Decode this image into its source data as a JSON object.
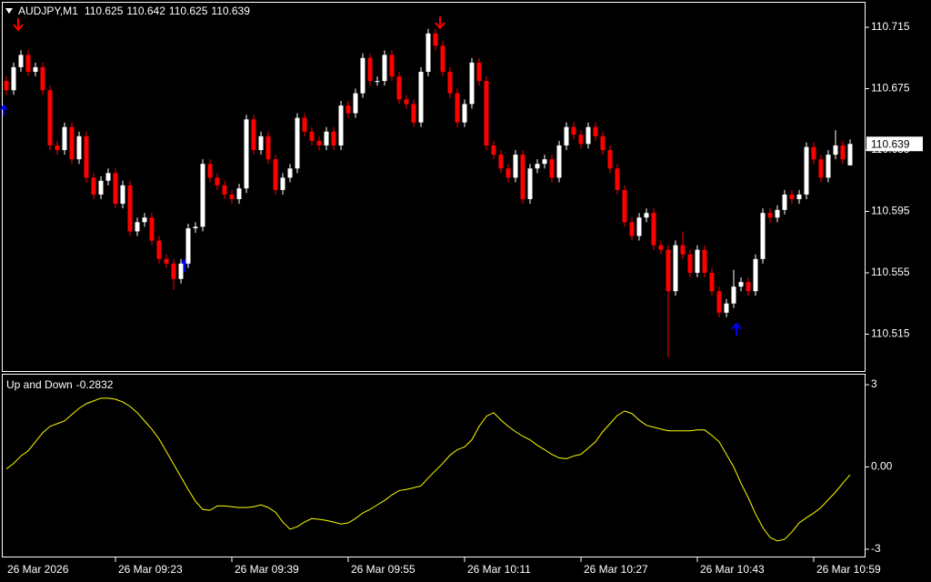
{
  "chart_data": [
    {
      "type": "candlestick",
      "title": "AUDJPY,M1",
      "bull_color": "#ffffff",
      "bear_color": "#ff0000",
      "ylim": [
        110.4898,
        110.7328
      ],
      "yticks": [
        110.715,
        110.675,
        110.635,
        110.595,
        110.555,
        110.515
      ],
      "categories": [
        "26 Mar 2026",
        null,
        null,
        null,
        null,
        null,
        null,
        null,
        null,
        null,
        null,
        null,
        null,
        null,
        null,
        "26 Mar 09:23",
        null,
        null,
        null,
        null,
        null,
        null,
        null,
        null,
        null,
        null,
        null,
        null,
        null,
        null,
        null,
        "26 Mar 09:39",
        null,
        null,
        null,
        null,
        null,
        null,
        null,
        null,
        null,
        null,
        null,
        null,
        null,
        null,
        null,
        "26 Mar 09:55",
        null,
        null,
        null,
        null,
        null,
        null,
        null,
        null,
        null,
        null,
        null,
        null,
        null,
        null,
        null,
        "26 Mar 10:11",
        null,
        null,
        null,
        null,
        null,
        null,
        null,
        null,
        null,
        null,
        null,
        null,
        null,
        null,
        null,
        "26 Mar 10:27",
        null,
        null,
        null,
        null,
        null,
        null,
        null,
        null,
        null,
        null,
        null,
        null,
        null,
        null,
        null,
        "26 Mar 10:43",
        null,
        null,
        null,
        null,
        null,
        null,
        null,
        null,
        null,
        null,
        null,
        null,
        null,
        null,
        null,
        "26 Mar 10:59",
        null,
        null,
        null,
        null,
        null
      ],
      "ohlc": [
        [
          110.68,
          110.683,
          110.671,
          110.674
        ],
        [
          110.674,
          110.692,
          110.671,
          110.689
        ],
        [
          110.689,
          110.7,
          110.686,
          110.697
        ],
        [
          110.697,
          110.7,
          110.683,
          110.686
        ],
        [
          110.686,
          110.692,
          110.683,
          110.689
        ],
        [
          110.689,
          110.692,
          110.671,
          110.674
        ],
        [
          110.674,
          110.677,
          110.635,
          110.638
        ],
        [
          110.638,
          110.641,
          110.632,
          110.635
        ],
        [
          110.635,
          110.653,
          110.632,
          110.65
        ],
        [
          110.65,
          110.653,
          110.626,
          110.629
        ],
        [
          110.629,
          110.647,
          110.626,
          110.644
        ],
        [
          110.644,
          110.647,
          110.614,
          110.617
        ],
        [
          110.617,
          110.62,
          110.603,
          110.606
        ],
        [
          110.606,
          110.618,
          110.603,
          110.615
        ],
        [
          110.615,
          110.623,
          110.612,
          110.62
        ],
        [
          110.62,
          110.623,
          110.597,
          110.6
        ],
        [
          110.6,
          110.615,
          110.597,
          110.612
        ],
        [
          110.612,
          110.615,
          110.579,
          110.582
        ],
        [
          110.582,
          110.591,
          110.579,
          110.588
        ],
        [
          110.588,
          110.594,
          110.585,
          110.591
        ],
        [
          110.591,
          110.594,
          110.573,
          110.576
        ],
        [
          110.576,
          110.579,
          110.561,
          110.564
        ],
        [
          110.564,
          110.567,
          110.558,
          110.561
        ],
        [
          110.561,
          110.564,
          110.544,
          110.551
        ],
        [
          110.551,
          110.564,
          110.548,
          110.561
        ],
        [
          110.561,
          110.587,
          110.558,
          110.584
        ],
        [
          110.584,
          110.588,
          110.581,
          110.585
        ],
        [
          110.585,
          110.629,
          110.582,
          110.626
        ],
        [
          110.626,
          110.629,
          110.614,
          110.617
        ],
        [
          110.617,
          110.62,
          110.609,
          110.612
        ],
        [
          110.612,
          110.615,
          110.603,
          110.606
        ],
        [
          110.606,
          110.609,
          110.6,
          110.603
        ],
        [
          110.603,
          110.613,
          110.6,
          110.61
        ],
        [
          110.61,
          110.658,
          110.607,
          110.655
        ],
        [
          110.655,
          110.658,
          110.632,
          110.635
        ],
        [
          110.635,
          110.647,
          110.632,
          110.644
        ],
        [
          110.644,
          110.647,
          110.626,
          110.629
        ],
        [
          110.629,
          110.632,
          110.606,
          110.609
        ],
        [
          110.609,
          110.62,
          110.606,
          110.617
        ],
        [
          110.617,
          110.626,
          110.614,
          110.623
        ],
        [
          110.623,
          110.659,
          110.62,
          110.656
        ],
        [
          110.656,
          110.659,
          110.644,
          110.647
        ],
        [
          110.647,
          110.65,
          110.638,
          110.641
        ],
        [
          110.641,
          110.644,
          110.635,
          110.638
        ],
        [
          110.638,
          110.65,
          110.635,
          110.647
        ],
        [
          110.647,
          110.65,
          110.635,
          110.638
        ],
        [
          110.638,
          110.667,
          110.635,
          110.664
        ],
        [
          110.664,
          110.667,
          110.656,
          110.659
        ],
        [
          110.659,
          110.675,
          110.656,
          110.672
        ],
        [
          110.672,
          110.698,
          110.669,
          110.695
        ],
        [
          110.695,
          110.698,
          110.677,
          110.68
        ],
        [
          110.68,
          110.683,
          110.677,
          110.68
        ],
        [
          110.68,
          110.7,
          110.677,
          110.697
        ],
        [
          110.697,
          110.7,
          110.68,
          110.683
        ],
        [
          110.683,
          110.686,
          110.665,
          110.668
        ],
        [
          110.668,
          110.671,
          110.662,
          110.665
        ],
        [
          110.665,
          110.668,
          110.65,
          110.653
        ],
        [
          110.653,
          110.689,
          110.65,
          110.686
        ],
        [
          110.686,
          110.714,
          110.683,
          110.711
        ],
        [
          110.711,
          110.714,
          110.7,
          110.703
        ],
        [
          110.703,
          110.706,
          110.683,
          110.686
        ],
        [
          110.686,
          110.689,
          110.669,
          110.672
        ],
        [
          110.672,
          110.675,
          110.65,
          110.653
        ],
        [
          110.653,
          110.668,
          110.65,
          110.665
        ],
        [
          110.665,
          110.695,
          110.662,
          110.692
        ],
        [
          110.692,
          110.695,
          110.677,
          110.68
        ],
        [
          110.68,
          110.683,
          110.635,
          110.638
        ],
        [
          110.638,
          110.641,
          110.629,
          110.632
        ],
        [
          110.632,
          110.635,
          110.62,
          110.623
        ],
        [
          110.623,
          110.626,
          110.614,
          110.617
        ],
        [
          110.617,
          110.635,
          110.614,
          110.632
        ],
        [
          110.632,
          110.635,
          110.6,
          110.603
        ],
        [
          110.603,
          110.626,
          110.6,
          110.623
        ],
        [
          110.623,
          110.629,
          110.62,
          110.626
        ],
        [
          110.626,
          110.632,
          110.623,
          110.629
        ],
        [
          110.629,
          110.632,
          110.614,
          110.617
        ],
        [
          110.617,
          110.641,
          110.614,
          110.638
        ],
        [
          110.638,
          110.653,
          110.635,
          110.65
        ],
        [
          110.65,
          110.653,
          110.642,
          110.645
        ],
        [
          110.645,
          110.648,
          110.636,
          110.639
        ],
        [
          110.639,
          110.653,
          110.636,
          110.65
        ],
        [
          110.65,
          110.653,
          110.641,
          110.644
        ],
        [
          110.644,
          110.647,
          110.632,
          110.635
        ],
        [
          110.635,
          110.638,
          110.62,
          110.623
        ],
        [
          110.623,
          110.626,
          110.606,
          110.609
        ],
        [
          110.609,
          110.612,
          110.585,
          110.588
        ],
        [
          110.588,
          110.591,
          110.576,
          110.579
        ],
        [
          110.579,
          110.594,
          110.576,
          110.591
        ],
        [
          110.591,
          110.597,
          110.588,
          110.594
        ],
        [
          110.594,
          110.597,
          110.57,
          110.573
        ],
        [
          110.573,
          110.576,
          110.567,
          110.57
        ],
        [
          110.57,
          110.573,
          110.5,
          110.543
        ],
        [
          110.543,
          110.576,
          110.54,
          110.573
        ],
        [
          110.573,
          110.582,
          110.564,
          110.567
        ],
        [
          110.567,
          110.57,
          110.552,
          110.555
        ],
        [
          110.555,
          110.573,
          110.552,
          110.57
        ],
        [
          110.57,
          110.573,
          110.552,
          110.555
        ],
        [
          110.555,
          110.558,
          110.54,
          110.543
        ],
        [
          110.543,
          110.546,
          110.526,
          110.529
        ],
        [
          110.529,
          110.538,
          110.526,
          110.535
        ],
        [
          110.535,
          110.557,
          110.532,
          110.546
        ],
        [
          110.546,
          110.552,
          110.543,
          110.549
        ],
        [
          110.549,
          110.552,
          110.54,
          110.543
        ],
        [
          110.543,
          110.567,
          110.54,
          110.564
        ],
        [
          110.564,
          110.597,
          110.561,
          110.594
        ],
        [
          110.594,
          110.597,
          110.588,
          110.591
        ],
        [
          110.591,
          110.599,
          110.588,
          110.596
        ],
        [
          110.596,
          110.609,
          110.593,
          110.606
        ],
        [
          110.606,
          110.609,
          110.6,
          110.603
        ],
        [
          110.603,
          110.609,
          110.6,
          110.606
        ],
        [
          110.606,
          110.64,
          110.603,
          110.637
        ],
        [
          110.637,
          110.64,
          110.626,
          110.629
        ],
        [
          110.629,
          110.632,
          110.614,
          110.617
        ],
        [
          110.617,
          110.635,
          110.614,
          110.632
        ],
        [
          110.632,
          110.648,
          110.629,
          110.638
        ],
        [
          110.638,
          110.641,
          110.626,
          110.629
        ],
        [
          110.625,
          110.642,
          110.625,
          110.639
        ]
      ]
    },
    {
      "type": "line",
      "title": "Up and Down",
      "color": "#ffff00",
      "ylim": [
        -3.3,
        3.4
      ],
      "yticks": [
        3,
        {
          "value": 0,
          "label": "0.00"
        },
        -3
      ],
      "values": [
        -0.07,
        0.13,
        0.4,
        0.59,
        0.92,
        1.25,
        1.48,
        1.58,
        1.68,
        1.91,
        2.14,
        2.31,
        2.41,
        2.51,
        2.51,
        2.47,
        2.37,
        2.21,
        1.98,
        1.68,
        1.38,
        1.02,
        0.56,
        0.1,
        -0.36,
        -0.82,
        -1.25,
        -1.55,
        -1.58,
        -1.42,
        -1.42,
        -1.45,
        -1.48,
        -1.48,
        -1.45,
        -1.38,
        -1.48,
        -1.65,
        -2.01,
        -2.27,
        -2.18,
        -2.01,
        -1.88,
        -1.91,
        -1.95,
        -2.01,
        -2.08,
        -2.04,
        -1.88,
        -1.68,
        -1.55,
        -1.38,
        -1.22,
        -1.02,
        -0.86,
        -0.82,
        -0.76,
        -0.69,
        -0.4,
        -0.13,
        0.13,
        0.43,
        0.63,
        0.73,
        0.99,
        1.48,
        1.85,
        1.98,
        1.71,
        1.48,
        1.29,
        1.12,
        0.99,
        0.79,
        0.63,
        0.46,
        0.33,
        0.3,
        0.4,
        0.46,
        0.69,
        0.92,
        1.29,
        1.58,
        1.88,
        2.04,
        1.95,
        1.71,
        1.52,
        1.45,
        1.38,
        1.32,
        1.32,
        1.32,
        1.32,
        1.35,
        1.35,
        1.15,
        0.92,
        0.46,
        0.0,
        -0.59,
        -1.12,
        -1.71,
        -2.21,
        -2.57,
        -2.7,
        -2.64,
        -2.37,
        -2.04,
        -1.85,
        -1.68,
        -1.48,
        -1.19,
        -0.92,
        -0.59,
        -0.2832
      ]
    }
  ]
}
